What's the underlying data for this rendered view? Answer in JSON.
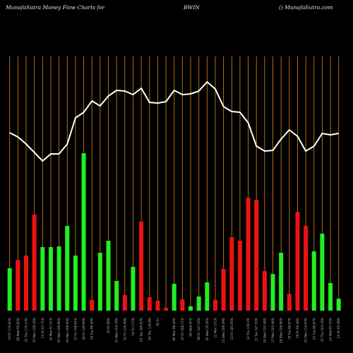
{
  "header": {
    "left": "MunafaSutra  Money Flow  Charts for",
    "ticker": "BWIN",
    "right": "() MunafaSutra.com"
  },
  "colors": {
    "background": "#000000",
    "grid": "#c8781e",
    "up": "#22ee22",
    "down": "#ee1111",
    "line": "#ffffff",
    "label": "#bbbbbb"
  },
  "chart_data": {
    "type": "bar",
    "title": "",
    "xlabel": "",
    "ylabel": "",
    "categories": [
      "19 Fri 174.82%",
      "20 Wed 94.82%",
      "21 Thu 175.14%",
      "22 Mon 120.18%",
      "23 Fri 87.71%",
      "24 Mon 97.21%",
      "25 Wed 169.96%",
      "26 Mon 100.94%",
      "27 Fri 198.81%",
      "28 Fri 149.99%",
      "29 Tue 89.40%",
      "",
      "30 Fri 89%",
      "31 Wed 164.79%",
      "01 Fri 126.40%",
      "02 Fri 172%",
      "03 Tue 106.02%",
      "04 Thu 118.8%",
      "05 Fri",
      "",
      "06 Mon 98.10%",
      "07 Fri 108.71%",
      "08 Wed 91%",
      "09 Fri 147.16%",
      "10 Wed 35.26%",
      "11 Mon 171%",
      "12 Wed 160.49%",
      "13 Fri 185.95%",
      "",
      "14 Thu 110.4%",
      "15 Tue 147.55%",
      "16 Wed 153.49%",
      "17 Mon 103.46%",
      "18 Wed 108.86%",
      "19 Tue 69.07%",
      "20 Fri 95.48%",
      "21 Mon 114.63%",
      "22 Tue 90.97%",
      "23 Thu 103.18%",
      "24 Wed 87.55%",
      "25 Fri 83.38%"
    ],
    "series": [
      {
        "values": [
          60,
          72,
          78,
          136,
          90,
          90,
          91,
          120,
          78,
          223,
          15,
          82,
          99,
          42,
          22,
          62,
          126,
          19,
          14,
          4,
          38,
          16,
          6,
          20,
          40,
          15,
          59,
          104,
          99,
          160,
          157,
          56,
          52,
          82,
          24,
          140,
          120,
          84,
          109,
          39,
          17
        ],
        "direction": [
          "up",
          "down",
          "down",
          "down",
          "up",
          "up",
          "up",
          "up",
          "up",
          "up",
          "down",
          "up",
          "up",
          "up",
          "down",
          "up",
          "down",
          "down",
          "down",
          "down",
          "up",
          "down",
          "up",
          "up",
          "up",
          "down",
          "down",
          "down",
          "down",
          "down",
          "down",
          "down",
          "up",
          "up",
          "down",
          "down",
          "down",
          "up",
          "up",
          "up",
          "up"
        ]
      },
      {
        "values": [
          252,
          246,
          236,
          224,
          212,
          222,
          222,
          236,
          273,
          281,
          297,
          290,
          304,
          312,
          311,
          306,
          315,
          295,
          294,
          296,
          312,
          306,
          307,
          311,
          324,
          314,
          289,
          282,
          281,
          266,
          233,
          226,
          227,
          243,
          256,
          247,
          226,
          233,
          251,
          249,
          251
        ]
      }
    ],
    "ylim": [
      0,
      360
    ],
    "grid": true,
    "legend": "none"
  }
}
